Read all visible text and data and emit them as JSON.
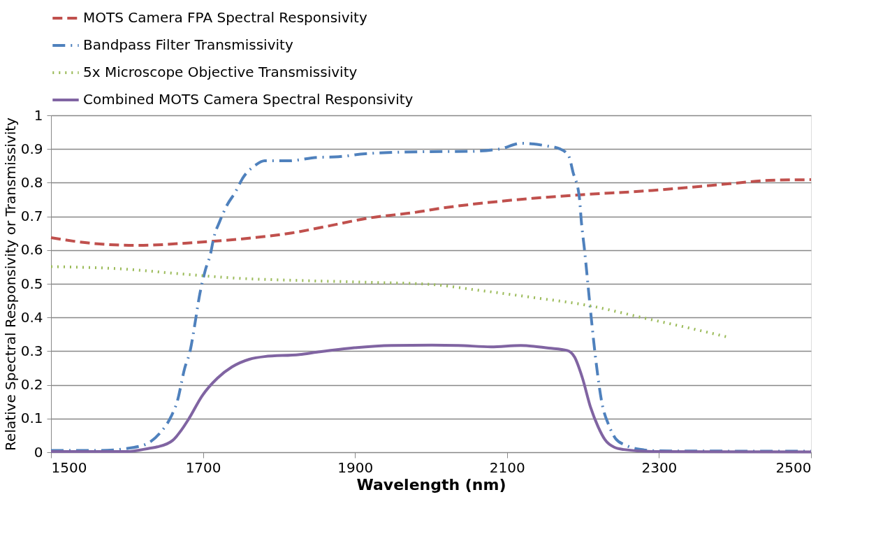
{
  "chart_data": {
    "type": "line",
    "xlabel": "Wavelength (nm)",
    "ylabel": "Relative Spectral Responsivity or Transmissivity",
    "xlim": [
      1500,
      2500
    ],
    "xticks": [
      1500,
      1700,
      1900,
      2100,
      2300,
      2500
    ],
    "ylim": [
      0,
      1
    ],
    "yticks": [
      0,
      0.1,
      0.2,
      0.3,
      0.4,
      0.5,
      0.6,
      0.7,
      0.8,
      0.9,
      1
    ],
    "grid": "y",
    "legend": "top",
    "marker": "none",
    "series": [
      {
        "name": "MOTS Camera FPA Spectral Responsivity",
        "color": "#c0504d",
        "line_style": "dashed",
        "x": [
          1500,
          1554,
          1614,
          1686,
          1768,
          1817,
          1866,
          1915,
          1985,
          2001,
          2087,
          2189,
          2291,
          2393,
          2445,
          2500
        ],
        "values": [
          0.637,
          0.62,
          0.614,
          0.622,
          0.637,
          0.651,
          0.672,
          0.694,
          0.714,
          0.72,
          0.744,
          0.763,
          0.777,
          0.797,
          0.807,
          0.809
        ]
      },
      {
        "name": "Bandpass Filter Transmissivity",
        "color": "#4f81bd",
        "line_style": "dashdot",
        "x": [
          1500,
          1560,
          1608,
          1630,
          1643,
          1658,
          1666,
          1676,
          1683,
          1690,
          1695,
          1703,
          1710,
          1714,
          1722,
          1732,
          1742,
          1753,
          1769,
          1781,
          1812,
          1850,
          1878,
          1913,
          1988,
          2050,
          2090,
          2119,
          2150,
          2170,
          2181,
          2187,
          2195,
          2198,
          2202,
          2209,
          2216,
          2225,
          2234,
          2243,
          2257,
          2280,
          2300,
          2500
        ],
        "values": [
          0.005,
          0.005,
          0.014,
          0.03,
          0.056,
          0.106,
          0.15,
          0.25,
          0.3,
          0.39,
          0.46,
          0.54,
          0.59,
          0.635,
          0.685,
          0.735,
          0.77,
          0.816,
          0.852,
          0.865,
          0.865,
          0.875,
          0.877,
          0.886,
          0.892,
          0.893,
          0.9,
          0.917,
          0.91,
          0.9,
          0.88,
          0.83,
          0.76,
          0.68,
          0.6,
          0.44,
          0.29,
          0.145,
          0.08,
          0.04,
          0.02,
          0.007,
          0.004,
          0.003
        ]
      },
      {
        "name": "5x Microscope Objective Transmissivity",
        "color": "#9bbb59",
        "line_style": "dotted",
        "x": [
          1500,
          1594,
          1668,
          1742,
          1840,
          1927,
          2001,
          2062,
          2135,
          2206,
          2281,
          2343,
          2390
        ],
        "values": [
          0.551,
          0.544,
          0.53,
          0.517,
          0.509,
          0.504,
          0.498,
          0.481,
          0.459,
          0.436,
          0.398,
          0.367,
          0.342
        ]
      },
      {
        "name": "Combined MOTS Camera Spectral Responsivity",
        "color": "#8064a2",
        "line_style": "solid",
        "x": [
          1500,
          1600,
          1630,
          1640,
          1660,
          1671,
          1681,
          1699,
          1719,
          1738,
          1761,
          1781,
          1827,
          1850,
          1899,
          1948,
          2001,
          2036,
          2079,
          2118,
          2155,
          2179,
          2189,
          2199,
          2210,
          2220,
          2229,
          2241,
          2254,
          2291,
          2500
        ],
        "values": [
          0.002,
          0.002,
          0.012,
          0.016,
          0.035,
          0.064,
          0.098,
          0.168,
          0.22,
          0.253,
          0.276,
          0.284,
          0.29,
          0.297,
          0.31,
          0.317,
          0.318,
          0.317,
          0.313,
          0.317,
          0.309,
          0.302,
          0.282,
          0.222,
          0.133,
          0.075,
          0.037,
          0.015,
          0.008,
          0.002,
          0.001
        ]
      }
    ]
  }
}
